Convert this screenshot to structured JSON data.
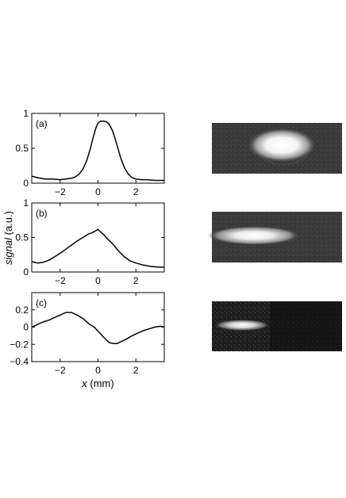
{
  "chart_data": [
    {
      "type": "line",
      "panel_label": "(a)",
      "xlim": [
        -3.5,
        3.5
      ],
      "ylim": [
        0,
        1
      ],
      "xticks": [
        -2,
        0,
        2
      ],
      "yticks": [
        0,
        0.5,
        1
      ],
      "xtick_labels": [
        "−2",
        "0",
        "2"
      ],
      "ytick_labels": [
        "0",
        "0.5",
        "1"
      ],
      "grid": false,
      "series": [
        {
          "x": [
            -3.5,
            -3.2,
            -2.8,
            -2.4,
            -2.0,
            -1.7,
            -1.4,
            -1.2,
            -1.0,
            -0.8,
            -0.6,
            -0.4,
            -0.25,
            -0.1,
            0.0,
            0.15,
            0.3,
            0.45,
            0.6,
            0.75,
            0.9,
            1.05,
            1.2,
            1.4,
            1.6,
            1.8,
            2.0,
            2.3,
            2.6,
            3.0,
            3.5
          ],
          "y": [
            0.1,
            0.08,
            0.06,
            0.06,
            0.05,
            0.06,
            0.07,
            0.09,
            0.13,
            0.2,
            0.32,
            0.5,
            0.66,
            0.8,
            0.86,
            0.89,
            0.89,
            0.88,
            0.84,
            0.76,
            0.64,
            0.5,
            0.36,
            0.22,
            0.13,
            0.08,
            0.06,
            0.05,
            0.05,
            0.04,
            0.04
          ]
        }
      ]
    },
    {
      "type": "line",
      "panel_label": "(b)",
      "xlim": [
        -3.5,
        3.5
      ],
      "ylim": [
        0,
        1
      ],
      "xticks": [
        -2,
        0,
        2
      ],
      "yticks": [
        0,
        0.5,
        1
      ],
      "xtick_labels": [
        "−2",
        "0",
        "2"
      ],
      "ytick_labels": [
        "0",
        "0.5",
        "1"
      ],
      "grid": false,
      "series": [
        {
          "x": [
            -3.5,
            -3.2,
            -2.9,
            -2.6,
            -2.3,
            -2.0,
            -1.7,
            -1.4,
            -1.1,
            -0.8,
            -0.5,
            -0.3,
            -0.1,
            0.0,
            0.1,
            0.3,
            0.5,
            0.8,
            1.1,
            1.4,
            1.7,
            2.0,
            2.4,
            2.8,
            3.2,
            3.5
          ],
          "y": [
            0.15,
            0.13,
            0.14,
            0.17,
            0.22,
            0.27,
            0.33,
            0.39,
            0.45,
            0.5,
            0.55,
            0.57,
            0.6,
            0.62,
            0.59,
            0.54,
            0.48,
            0.4,
            0.3,
            0.22,
            0.16,
            0.13,
            0.1,
            0.08,
            0.07,
            0.07
          ]
        }
      ]
    },
    {
      "type": "line",
      "panel_label": "(c)",
      "xlim": [
        -3.5,
        3.5
      ],
      "ylim": [
        -0.4,
        0.4
      ],
      "xticks": [
        -2,
        0,
        2
      ],
      "yticks": [
        -0.4,
        -0.2,
        0,
        0.2
      ],
      "xtick_labels": [
        "−2",
        "0",
        "2"
      ],
      "ytick_labels": [
        "−0.4",
        "−0.2",
        "0",
        "0.2"
      ],
      "grid": false,
      "xlabel_italic": "x",
      "xlabel_rest": " (mm)",
      "series": [
        {
          "x": [
            -3.5,
            -3.2,
            -2.9,
            -2.6,
            -2.3,
            -2.0,
            -1.7,
            -1.4,
            -1.1,
            -0.8,
            -0.5,
            -0.2,
            0.1,
            0.4,
            0.6,
            0.8,
            1.0,
            1.2,
            1.5,
            1.8,
            2.1,
            2.4,
            2.7,
            3.0,
            3.3,
            3.5
          ],
          "y": [
            0.0,
            0.03,
            0.06,
            0.08,
            0.11,
            0.14,
            0.17,
            0.17,
            0.14,
            0.1,
            0.04,
            0.0,
            -0.07,
            -0.14,
            -0.18,
            -0.19,
            -0.19,
            -0.17,
            -0.14,
            -0.1,
            -0.07,
            -0.04,
            -0.02,
            0.0,
            0.01,
            0.0
          ]
        }
      ]
    }
  ],
  "shared_ylabel_italic": "signal",
  "shared_ylabel_rest": " (a.u.)",
  "images": [
    {
      "panel": "(a)",
      "colors": {
        "background": "#3a3a3a",
        "spot": "#ffffff"
      }
    },
    {
      "panel": "(b)",
      "colors": {
        "background": "#3a3a3a",
        "spot": "#ffffff"
      }
    },
    {
      "panel": "(c)",
      "colors": {
        "background": "#1e1e1e",
        "spot": "#ffffff"
      }
    }
  ]
}
